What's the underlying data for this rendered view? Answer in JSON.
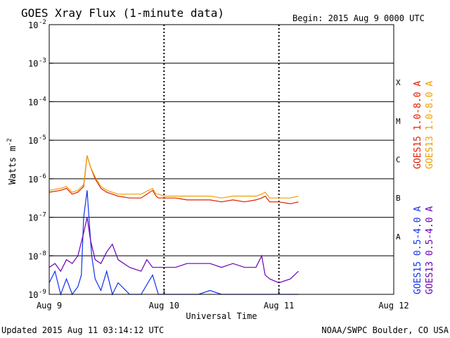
{
  "chart_data": {
    "type": "line",
    "title": "GOES Xray Flux (1-minute data)",
    "begin_label": "Begin:  2015 Aug 9 0000 UTC",
    "ylabel": "Watts m",
    "ylabel_exp": "-2",
    "xlabel": "Universal Time",
    "x_ticks": [
      "Aug 9",
      "Aug 10",
      "Aug 11",
      "Aug 12"
    ],
    "x_tick_values_days": [
      0,
      1,
      2,
      3
    ],
    "xlim_days": [
      0,
      3
    ],
    "ylim_log10": [
      -9,
      -2
    ],
    "y_ticks": [
      "10",
      "10",
      "10",
      "10",
      "10",
      "10",
      "10",
      "10"
    ],
    "y_tick_exponents": [
      "-2",
      "-3",
      "-4",
      "-5",
      "-6",
      "-7",
      "-8",
      "-9"
    ],
    "y_scale": "log",
    "flare_classes": [
      {
        "label": "X",
        "log_center": -3.5
      },
      {
        "label": "M",
        "log_center": -4.5
      },
      {
        "label": "C",
        "log_center": -5.5
      },
      {
        "label": "B",
        "log_center": -6.5
      },
      {
        "label": "A",
        "log_center": -7.5
      }
    ],
    "grid": true,
    "legend_placement": "right",
    "series": [
      {
        "name": "GOES15 1.0-8.0 A",
        "color": "#dd1f00",
        "x_days": [
          0.0,
          0.1,
          0.15,
          0.2,
          0.25,
          0.3,
          0.33,
          0.36,
          0.4,
          0.45,
          0.5,
          0.6,
          0.7,
          0.8,
          0.9,
          0.93,
          0.95,
          1.0,
          1.1,
          1.2,
          1.3,
          1.4,
          1.5,
          1.6,
          1.7,
          1.8,
          1.85,
          1.88,
          1.92,
          2.0,
          2.1,
          2.17
        ],
        "log_values": [
          -6.35,
          -6.3,
          -6.25,
          -6.4,
          -6.35,
          -6.2,
          -5.4,
          -5.7,
          -6.0,
          -6.25,
          -6.35,
          -6.45,
          -6.5,
          -6.5,
          -6.3,
          -6.45,
          -6.5,
          -6.5,
          -6.5,
          -6.55,
          -6.55,
          -6.55,
          -6.6,
          -6.55,
          -6.6,
          -6.55,
          -6.5,
          -6.45,
          -6.6,
          -6.6,
          -6.65,
          -6.6
        ]
      },
      {
        "name": "GOES13 1.0-8.0 A",
        "color": "#f0a000",
        "x_days": [
          0.0,
          0.1,
          0.15,
          0.2,
          0.25,
          0.3,
          0.33,
          0.36,
          0.4,
          0.45,
          0.5,
          0.6,
          0.7,
          0.8,
          0.9,
          0.93,
          0.95,
          1.0,
          1.1,
          1.2,
          1.3,
          1.4,
          1.5,
          1.6,
          1.7,
          1.8,
          1.85,
          1.88,
          1.92,
          2.0,
          2.1,
          2.17
        ],
        "log_values": [
          -6.3,
          -6.25,
          -6.2,
          -6.35,
          -6.3,
          -6.15,
          -5.4,
          -5.7,
          -5.95,
          -6.2,
          -6.3,
          -6.4,
          -6.4,
          -6.4,
          -6.25,
          -6.4,
          -6.4,
          -6.45,
          -6.45,
          -6.45,
          -6.45,
          -6.45,
          -6.5,
          -6.45,
          -6.45,
          -6.45,
          -6.4,
          -6.35,
          -6.5,
          -6.5,
          -6.5,
          -6.45
        ]
      },
      {
        "name": "GOES15 0.5-4.0 A",
        "color": "#1030ee",
        "x_days": [
          0.0,
          0.05,
          0.1,
          0.15,
          0.2,
          0.25,
          0.28,
          0.3,
          0.33,
          0.35,
          0.37,
          0.4,
          0.45,
          0.5,
          0.55,
          0.6,
          0.7,
          0.8,
          0.9,
          0.95,
          1.0,
          1.1,
          1.2,
          1.3,
          1.4,
          1.5,
          1.6,
          1.7,
          1.8,
          1.9,
          2.0,
          2.1,
          2.17
        ],
        "log_values": [
          -8.7,
          -8.4,
          -9.0,
          -8.6,
          -9.0,
          -8.8,
          -8.5,
          -7.0,
          -6.3,
          -7.2,
          -8.0,
          -8.6,
          -8.9,
          -8.4,
          -9.0,
          -8.7,
          -9.0,
          -9.0,
          -8.5,
          -9.0,
          -9.0,
          -9.0,
          -9.0,
          -9.0,
          -8.9,
          -9.0,
          -9.0,
          -9.0,
          -9.0,
          -9.0,
          -9.0,
          -9.0,
          -9.0
        ]
      },
      {
        "name": "GOES13 0.5-4.0 A",
        "color": "#6a00b4",
        "x_days": [
          0.0,
          0.05,
          0.1,
          0.15,
          0.2,
          0.25,
          0.3,
          0.33,
          0.36,
          0.4,
          0.45,
          0.5,
          0.55,
          0.6,
          0.7,
          0.8,
          0.85,
          0.9,
          1.0,
          1.1,
          1.2,
          1.3,
          1.4,
          1.5,
          1.6,
          1.7,
          1.8,
          1.85,
          1.88,
          1.92,
          2.0,
          2.1,
          2.17
        ],
        "log_values": [
          -8.3,
          -8.2,
          -8.4,
          -8.1,
          -8.2,
          -8.0,
          -7.4,
          -7.0,
          -7.6,
          -8.1,
          -8.2,
          -7.9,
          -7.7,
          -8.1,
          -8.3,
          -8.4,
          -8.1,
          -8.3,
          -8.3,
          -8.3,
          -8.2,
          -8.2,
          -8.2,
          -8.3,
          -8.2,
          -8.3,
          -8.3,
          -8.0,
          -8.5,
          -8.6,
          -8.7,
          -8.6,
          -8.4
        ]
      }
    ]
  },
  "footer": {
    "updated": "Updated 2015 Aug 11 03:14:12 UTC",
    "credit": "NOAA/SWPC Boulder, CO USA"
  }
}
